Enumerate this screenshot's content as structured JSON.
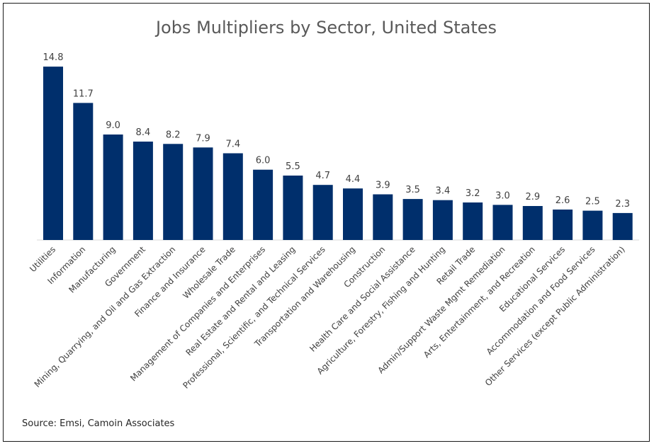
{
  "chart_data": {
    "type": "bar",
    "title": "Jobs Multipliers by Sector, United States",
    "xlabel": "",
    "ylabel": "",
    "ylim": [
      0,
      16
    ],
    "grid": false,
    "legend": "none",
    "bar_color": "#002f6c",
    "source": "Source: Emsi, Camoin Associates",
    "categories": [
      "Utilities",
      "Information",
      "Manufacturing",
      "Government",
      "Mining, Quarrying, and Oil and Gas Extraction",
      "Finance and Insurance",
      "Wholesale Trade",
      "Management of Companies and Enterprises",
      "Real Estate and Rental and Leasing",
      "Professional, Scientific, and Technical Services",
      "Transportation and Warehousing",
      "Construction",
      "Health Care and Social Assistance",
      "Agriculture, Forestry, Fishing and Hunting",
      "Retail Trade",
      "Admin/Support Waste Mgmt Remediation",
      "Arts, Entertainment, and Recreation",
      "Educational Services",
      "Accommodation and Food Services",
      "Other Services (except Public Administration)"
    ],
    "values": [
      14.8,
      11.7,
      9.0,
      8.4,
      8.2,
      7.9,
      7.4,
      6.0,
      5.5,
      4.7,
      4.4,
      3.9,
      3.5,
      3.4,
      3.2,
      3.0,
      2.9,
      2.6,
      2.5,
      2.3
    ],
    "value_labels": [
      "14.8",
      "11.7",
      "9.0",
      "8.4",
      "8.2",
      "7.9",
      "7.4",
      "6.0",
      "5.5",
      "4.7",
      "4.4",
      "3.9",
      "3.5",
      "3.4",
      "3.2",
      "3.0",
      "2.9",
      "2.6",
      "2.5",
      "2.3"
    ]
  }
}
